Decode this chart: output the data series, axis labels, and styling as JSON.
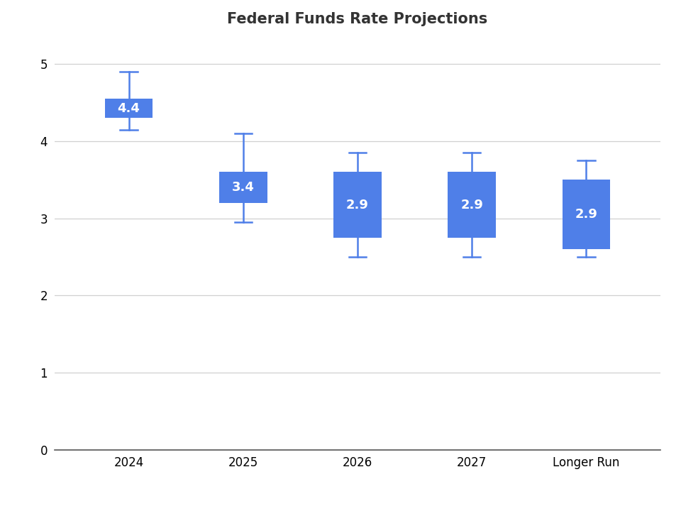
{
  "title": "Federal Funds Rate Projections",
  "categories": [
    "2024",
    "2025",
    "2026",
    "2027",
    "Longer Run"
  ],
  "medians": [
    4.4,
    3.4,
    2.9,
    2.9,
    2.9
  ],
  "box_low": [
    4.3,
    3.2,
    2.75,
    2.75,
    2.6
  ],
  "box_high": [
    4.55,
    3.6,
    3.6,
    3.6,
    3.5
  ],
  "whisker_low": [
    4.15,
    2.95,
    2.5,
    2.5,
    2.5
  ],
  "whisker_high": [
    4.9,
    4.1,
    3.85,
    3.85,
    3.75
  ],
  "bar_color": "#4F7FE8",
  "whisker_color": "#4F7FE8",
  "label_color": "#FFFFFF",
  "background_color": "#FFFFFF",
  "grid_color": "#D0D0D0",
  "ylim": [
    0,
    5.3
  ],
  "yticks": [
    0,
    1,
    2,
    3,
    4,
    5
  ],
  "title_fontsize": 15,
  "label_fontsize": 13,
  "tick_fontsize": 12,
  "box_width": 0.42
}
